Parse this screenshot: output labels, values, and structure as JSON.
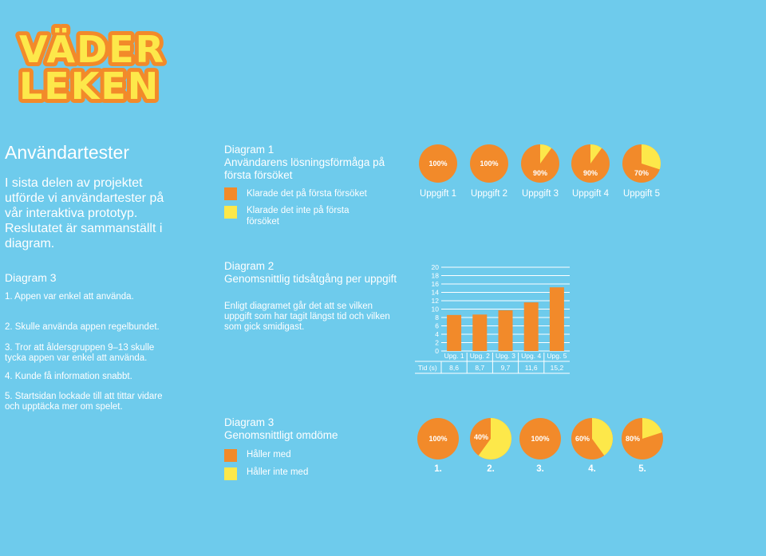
{
  "logo": {
    "line1": "VÄDER",
    "line2": "LEKEN"
  },
  "intro": {
    "title": "Användartester",
    "text": "I sista delen av projektet utförde vi användartester på vår interaktiva prototyp. Reslutatet är sammanställt i diagram."
  },
  "results": {
    "heading": "Diagram 3",
    "items": [
      "1. Appen var enkel att använda.",
      "2. Skulle använda appen regelbundet.",
      "3. Tror att åldersgruppen 9–13 skulle tycka appen var enkel att använda.",
      "4. Kunde få information snabbt.",
      "5. Startsidan lockade till att tittar vidare och upptäcka mer om spelet."
    ]
  },
  "diagram1": {
    "title": "Diagram 1",
    "subtitle": "Användarens lösningsförmåga på första försöket",
    "legend": [
      {
        "label": "Klarade det på första försöket",
        "color": "#f28a2a"
      },
      {
        "label": "Klarade det inte på första försöket",
        "color": "#fde84a"
      }
    ]
  },
  "diagram2": {
    "title": "Diagram 2",
    "subtitle": "Genomsnittlig tidsåtgång per uppgift",
    "text": "Enligt diagramet går det att se vilken uppgift som har tagit längst tid och vilken som gick smidigast."
  },
  "diagram3": {
    "title": "Diagram 3",
    "subtitle": "Genomsnittligt omdöme",
    "legend": [
      {
        "label": "Håller med",
        "color": "#f28a2a"
      },
      {
        "label": "Håller inte med",
        "color": "#fde84a"
      }
    ]
  },
  "chart_data": [
    {
      "type": "pie",
      "categories": [
        "Uppgift 1",
        "Uppgift 2",
        "Uppgift 3",
        "Uppgift 4",
        "Uppgift 5"
      ],
      "values": [
        100,
        100,
        90,
        90,
        70
      ],
      "labels": [
        "100%",
        "100%",
        "90%",
        "90%",
        "70%"
      ],
      "colors": {
        "main": "#f28a2a",
        "rest": "#fde84a"
      }
    },
    {
      "type": "bar",
      "categories": [
        "Upg. 1",
        "Upg. 2",
        "Upg. 3",
        "Upg. 4",
        "Upg. 5"
      ],
      "values": [
        8.6,
        8.7,
        9.7,
        11.6,
        15.2
      ],
      "value_labels": [
        "8,6",
        "8,7",
        "9,7",
        "11,6",
        "15,2"
      ],
      "row_label": "Tid (s)",
      "ylim": [
        0,
        20
      ],
      "yticks": [
        "0",
        "2",
        "4",
        "6",
        "8",
        "10",
        "12",
        "14",
        "16",
        "18",
        "20"
      ],
      "grid": true,
      "color": "#f28a2a"
    },
    {
      "type": "pie",
      "categories": [
        "1.",
        "2.",
        "3.",
        "4.",
        "5."
      ],
      "values": [
        100,
        40,
        100,
        60,
        80
      ],
      "labels": [
        "100%",
        "40%",
        "100%",
        "60%",
        "80%"
      ],
      "colors": {
        "main": "#f28a2a",
        "rest": "#fde84a"
      }
    }
  ]
}
